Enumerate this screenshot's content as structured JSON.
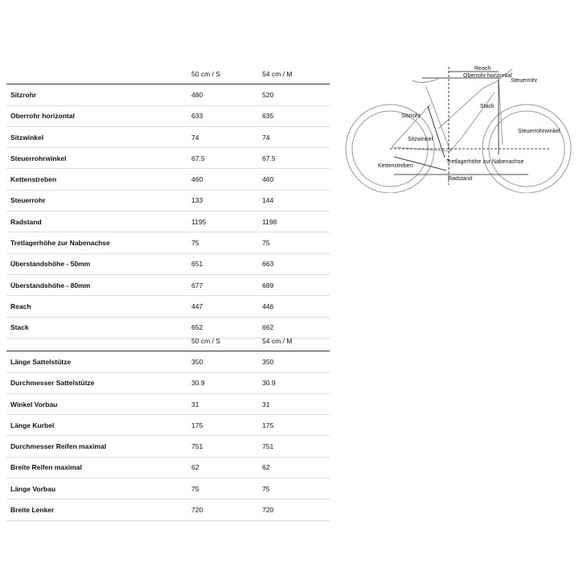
{
  "columns": [
    "50 cm / S",
    "54 cm / M"
  ],
  "geometry": [
    {
      "label": "Sitzrohr",
      "s": "480",
      "m": "520"
    },
    {
      "label": "Oberrohr horizontal",
      "s": "633",
      "m": "635"
    },
    {
      "label": "Sitzwinkel",
      "s": "74",
      "m": "74"
    },
    {
      "label": "Steuerrohrwinkel",
      "s": "67.5",
      "m": "67.5"
    },
    {
      "label": "Kettenstreben",
      "s": "460",
      "m": "460"
    },
    {
      "label": "Steuerrohr",
      "s": "133",
      "m": "144"
    },
    {
      "label": "Radstand",
      "s": "1195",
      "m": "1198"
    },
    {
      "label": "Tretlagerhöhe zur Nabenachse",
      "s": "75",
      "m": "75"
    },
    {
      "label": "Überstandshöhe - 50mm",
      "s": "651",
      "m": "663"
    },
    {
      "label": "Überstandshöhe - 80mm",
      "s": "677",
      "m": "689"
    },
    {
      "label": "Reach",
      "s": "447",
      "m": "446"
    },
    {
      "label": "Stack",
      "s": "652",
      "m": "662"
    }
  ],
  "components": [
    {
      "label": "Länge Sattelstütze",
      "s": "350",
      "m": "350"
    },
    {
      "label": "Durchmesser Sattelstütze",
      "s": "30.9",
      "m": "30.9"
    },
    {
      "label": "Winkel Vorbau",
      "s": "31",
      "m": "31"
    },
    {
      "label": "Länge Kurbel",
      "s": "175",
      "m": "175"
    },
    {
      "label": "Durchmesser Reifen maximal",
      "s": "751",
      "m": "751"
    },
    {
      "label": "Breite Reifen maximal",
      "s": "62",
      "m": "62"
    },
    {
      "label": "Länge Vorbau",
      "s": "75",
      "m": "75"
    },
    {
      "label": "Breite Lenker",
      "s": "720",
      "m": "720"
    }
  ],
  "diagram": {
    "reach": "Reach",
    "top_tube": "Oberrohr horizontal",
    "head_tube": "Steuerrohr",
    "stack": "Stack",
    "seat_tube": "Sitzrohr",
    "head_angle": "Steuerrohrwinkel",
    "seat_angle": "Sitzwinkel",
    "chainstays": "Kettenstreben",
    "bb_drop": "Tretlagerhöhe zur Nabenachse",
    "wheelbase": "Radstand"
  }
}
